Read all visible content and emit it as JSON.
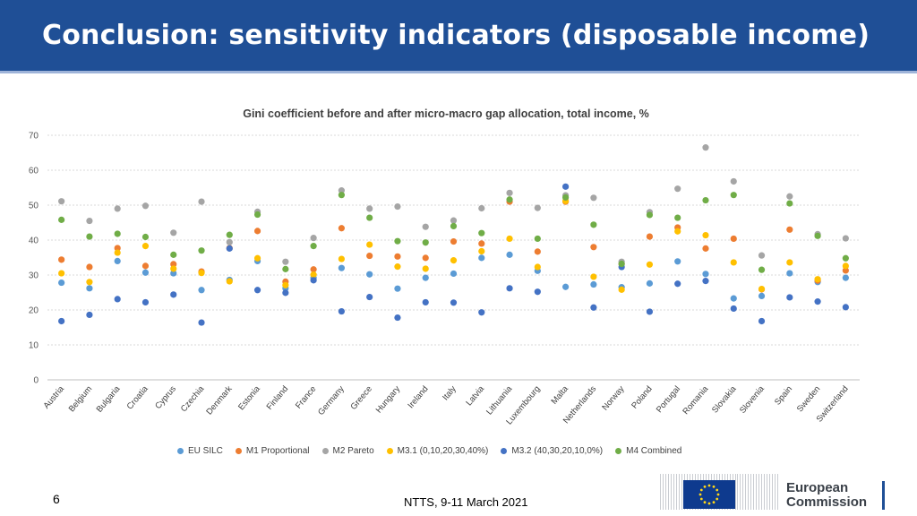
{
  "slide": {
    "title": "Conclusion: sensitivity indicators (disposable income)",
    "page_number": "6",
    "footer": "NTTS, 9-11 March 2021",
    "logo_text_line1": "European",
    "logo_text_line2": "Commission"
  },
  "chart_data": {
    "type": "scatter",
    "title": "Gini coefficient before and after micro-macro gap allocation, total income, %",
    "ylim": [
      0,
      70
    ],
    "yticks": [
      0,
      10,
      20,
      30,
      40,
      50,
      60,
      70
    ],
    "categories": [
      "Austria",
      "Belgium",
      "Bulgaria",
      "Croatia",
      "Cyprus",
      "Czechia",
      "Denmark",
      "Estonia",
      "Finland",
      "France",
      "Germany",
      "Greece",
      "Hungary",
      "Ireland",
      "Italy",
      "Latvia",
      "Lithuania",
      "Luxembourg",
      "Malta",
      "Netherlands",
      "Norway",
      "Poland",
      "Portugal",
      "Romania",
      "Slovakia",
      "Slovenia",
      "Spain",
      "Sweden",
      "Switzerland"
    ],
    "series": [
      {
        "name": "EU SILC",
        "color": "#5b9bd5",
        "values": [
          27.8,
          26.2,
          34.0,
          30.7,
          30.5,
          25.7,
          28.6,
          34.0,
          26.2,
          29.2,
          32.0,
          30.2,
          26.1,
          29.2,
          30.4,
          34.9,
          35.8,
          31.2,
          26.6,
          27.3,
          26.5,
          27.6,
          33.9,
          30.3,
          23.3,
          24.0,
          30.5,
          28.0,
          29.2
        ]
      },
      {
        "name": "M1 Proportional",
        "color": "#ed7d31",
        "values": [
          34.4,
          32.3,
          37.7,
          32.6,
          33.1,
          31.0,
          37.7,
          42.6,
          28.1,
          31.6,
          43.4,
          35.5,
          35.3,
          34.9,
          39.6,
          39.0,
          51.0,
          36.7,
          51.0,
          38.0,
          33.2,
          41.0,
          43.6,
          37.6,
          40.4,
          25.9,
          43.0,
          28.4,
          31.3
        ]
      },
      {
        "name": "M2 Pareto",
        "color": "#a5a5a5",
        "values": [
          51.1,
          45.5,
          49.0,
          49.8,
          42.1,
          51.0,
          39.4,
          48.1,
          33.8,
          40.6,
          54.2,
          49.0,
          49.6,
          43.8,
          45.6,
          49.1,
          53.5,
          49.2,
          52.8,
          52.1,
          33.8,
          48.0,
          54.7,
          66.5,
          56.8,
          35.6,
          52.5,
          41.7,
          40.5
        ]
      },
      {
        "name": "M3.1 (0,10,20,30,40%)",
        "color": "#ffc000",
        "values": [
          30.5,
          28.0,
          36.4,
          38.3,
          31.8,
          30.6,
          28.2,
          34.8,
          27.1,
          30.1,
          34.6,
          38.7,
          32.4,
          31.8,
          34.2,
          36.8,
          40.4,
          32.3,
          51.2,
          29.5,
          25.8,
          33.0,
          42.5,
          41.4,
          33.6,
          26.0,
          33.6,
          28.8,
          32.6
        ]
      },
      {
        "name": "M3.2 (40,30,20,10,0%)",
        "color": "#4472c4",
        "values": [
          16.8,
          18.6,
          23.1,
          22.2,
          24.4,
          16.4,
          37.6,
          25.7,
          24.9,
          28.5,
          19.6,
          23.7,
          17.8,
          22.2,
          22.1,
          19.3,
          26.2,
          25.2,
          55.3,
          20.7,
          32.3,
          19.5,
          27.5,
          28.3,
          20.4,
          16.8,
          23.6,
          22.4,
          20.8
        ]
      },
      {
        "name": "M4 Combined",
        "color": "#70ad47",
        "values": [
          45.8,
          41.0,
          41.8,
          40.9,
          35.8,
          37.0,
          41.5,
          47.3,
          31.7,
          38.3,
          52.9,
          46.4,
          39.7,
          39.3,
          44.0,
          42.0,
          51.6,
          40.4,
          52.2,
          44.4,
          33.2,
          47.2,
          46.4,
          51.4,
          52.9,
          31.5,
          50.5,
          41.2,
          34.8
        ]
      }
    ]
  }
}
